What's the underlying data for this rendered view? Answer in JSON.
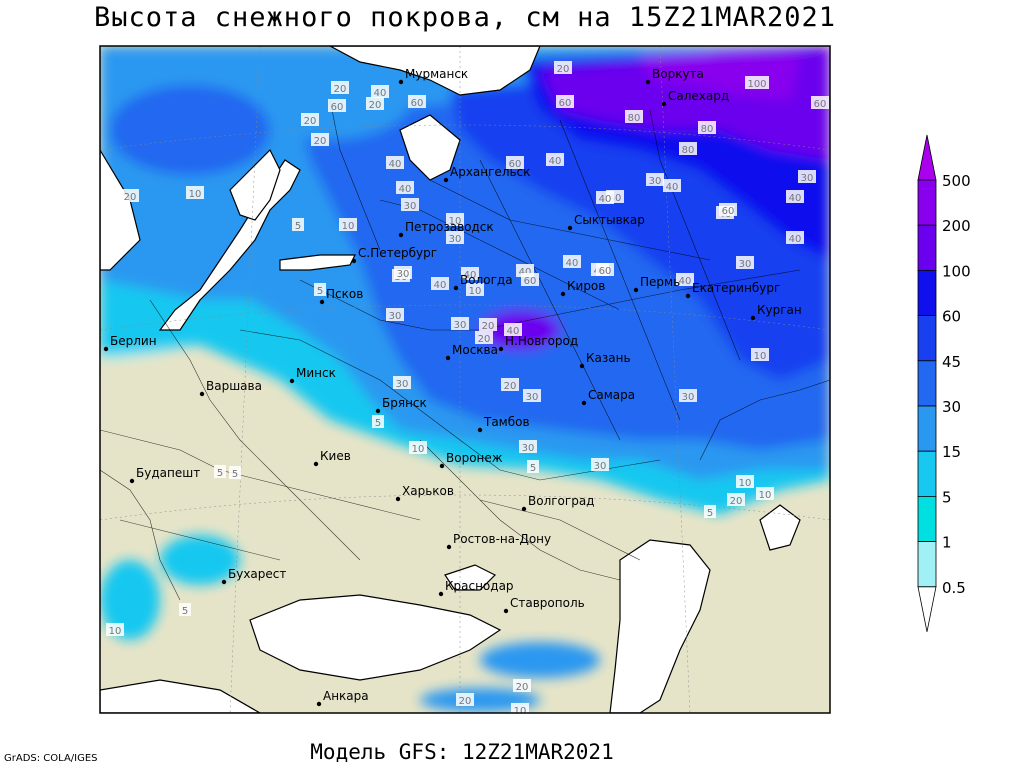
{
  "title": "Высота снежного покрова, см на 15Z21MAR2021",
  "footer": "Модель GFS: 12Z21MAR2021",
  "credit": "GrADS: COLA/IGES",
  "colorbar": [
    {
      "label": "500",
      "color": "#aa00ee"
    },
    {
      "label": "200",
      "color": "#8800ee"
    },
    {
      "label": "100",
      "color": "#6a00ee"
    },
    {
      "label": "60",
      "color": "#1010ee"
    },
    {
      "label": "45",
      "color": "#1840f0"
    },
    {
      "label": "30",
      "color": "#2268f0"
    },
    {
      "label": "15",
      "color": "#2a98f0"
    },
    {
      "label": "5",
      "color": "#18c8f0"
    },
    {
      "label": "1",
      "color": "#00e0e0"
    },
    {
      "label": "0.5",
      "color": "#a0f0f5"
    }
  ],
  "colors": {
    "land": "#e6e4c8",
    "sea": "#ffffff"
  },
  "cities": [
    "Мурманск",
    "Воркута",
    "Салехард",
    "Архангельск",
    "Сыктывкар",
    "Петрозаводск",
    "С.Петербург",
    "Вологда",
    "Киров",
    "Пермь",
    "Екатеринбург",
    "Псков",
    "Курган",
    "Н.Новгород",
    "Берлин",
    "Москва",
    "Казань",
    "Минск",
    "Варшава",
    "Брянск",
    "Самара",
    "Тамбов",
    "Киев",
    "Воронеж",
    "Будапешт",
    "Харьков",
    "Волгоград",
    "Ростов-на-Дону",
    "Бухарест",
    "Краснодар",
    "Ставрополь",
    "Анкара"
  ],
  "contour_labels": [
    "20",
    "60",
    "100",
    "60",
    "40",
    "60",
    "60",
    "80",
    "80",
    "60",
    "40",
    "80",
    "40",
    "30",
    "40",
    "30",
    "40",
    "5",
    "10",
    "30",
    "20",
    "30",
    "10",
    "20",
    "10",
    "30",
    "40",
    "40",
    "40",
    "30",
    "40",
    "40",
    "30",
    "40",
    "20",
    "20",
    "30",
    "40",
    "20",
    "40",
    "5",
    "10",
    "20",
    "30",
    "5",
    "10",
    "30",
    "10",
    "5",
    "20",
    "30",
    "40",
    "30",
    "5",
    "5",
    "10",
    "5",
    "10",
    "20",
    "10",
    "20",
    "20",
    "40",
    "30",
    "60",
    "40",
    "60",
    "40",
    "60",
    "20",
    "5",
    "10",
    "30"
  ]
}
